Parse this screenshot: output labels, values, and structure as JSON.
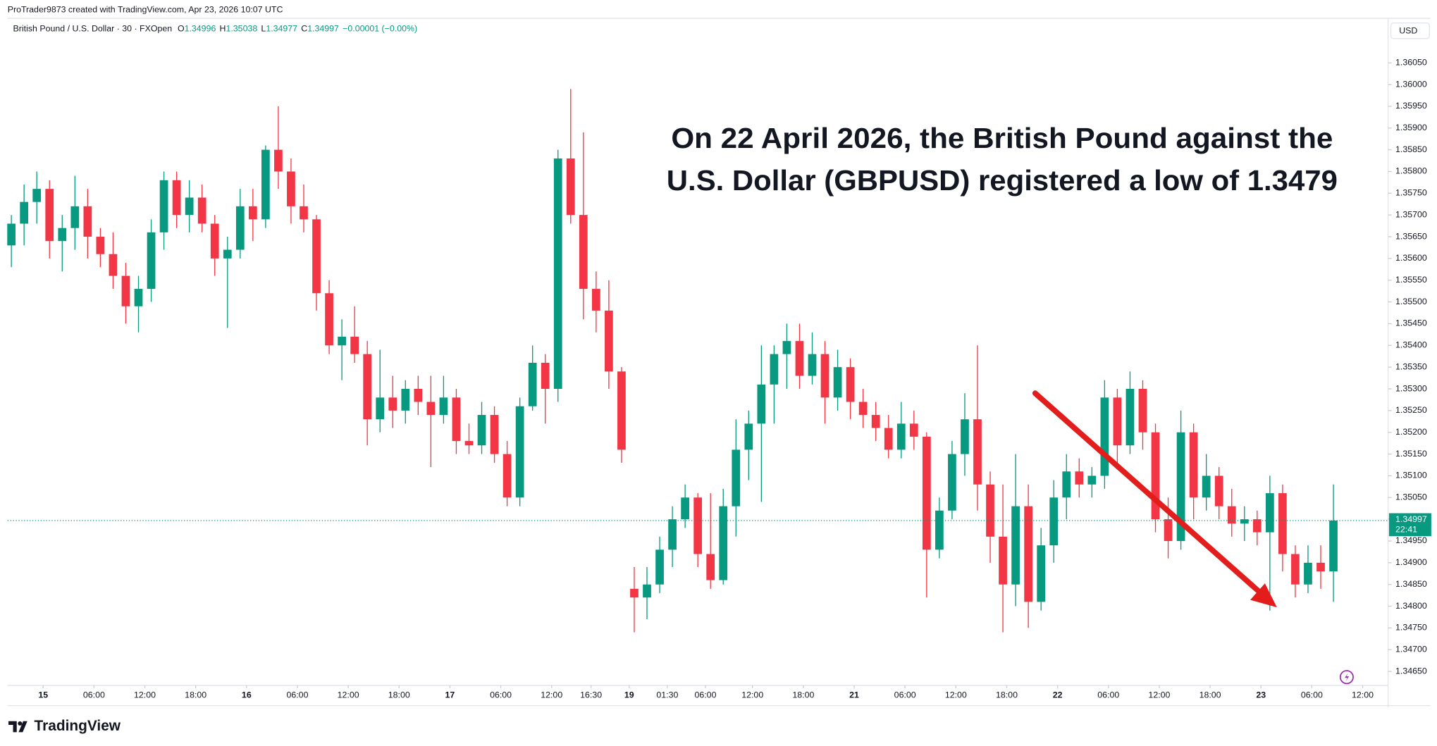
{
  "header": {
    "credit": "ProTrader9873 created with TradingView.com, Apr 23, 2026 10:07 UTC",
    "symbol": "British Pound / U.S. Dollar · 30 · FXOpen",
    "legend": [
      {
        "label": "O",
        "value": 1.34996
      },
      {
        "label": "H",
        "value": 1.35038
      },
      {
        "label": "L",
        "value": 1.34977
      },
      {
        "label": "C",
        "value": 1.34997
      }
    ],
    "change": "−0.00001 (−0.00%)",
    "currency": "USD"
  },
  "annotation": [
    "On 22 April 2026, the British Pound against the",
    "U.S. Dollar (GBPUSD) registered a low of 1.3479"
  ],
  "footer": {
    "logo": "TradingView"
  },
  "chart_data": {
    "type": "candlestick",
    "up_color": "#089981",
    "down_color": "#f23645",
    "grid": false,
    "last_price": 1.34997,
    "countdown": "22:41",
    "xlim": [
      -0.3,
      108.3
    ],
    "ylim": [
      1.3462,
      1.3611
    ],
    "xticks": [
      {
        "value": 2.5,
        "label": "15"
      },
      {
        "value": 6.5,
        "label": "06:00"
      },
      {
        "value": 10.5,
        "label": "12:00"
      },
      {
        "value": 14.5,
        "label": "18:00"
      },
      {
        "value": 18.5,
        "label": "16"
      },
      {
        "value": 22.5,
        "label": "06:00"
      },
      {
        "value": 26.5,
        "label": "12:00"
      },
      {
        "value": 30.5,
        "label": "18:00"
      },
      {
        "value": 34.5,
        "label": "17"
      },
      {
        "value": 38.5,
        "label": "06:00"
      },
      {
        "value": 42.5,
        "label": "12:00"
      },
      {
        "value": 45.6,
        "label": "16:30"
      },
      {
        "value": 48.6,
        "label": "19"
      },
      {
        "value": 51.6,
        "label": "01:30"
      },
      {
        "value": 54.6,
        "label": "06:00"
      },
      {
        "value": 58.3,
        "label": "12:00"
      },
      {
        "value": 62.3,
        "label": "18:00"
      },
      {
        "value": 66.3,
        "label": "21"
      },
      {
        "value": 70.3,
        "label": "06:00"
      },
      {
        "value": 74.3,
        "label": "12:00"
      },
      {
        "value": 78.3,
        "label": "18:00"
      },
      {
        "value": 82.3,
        "label": "22"
      },
      {
        "value": 86.3,
        "label": "06:00"
      },
      {
        "value": 90.3,
        "label": "12:00"
      },
      {
        "value": 94.3,
        "label": "18:00"
      },
      {
        "value": 98.3,
        "label": "23"
      },
      {
        "value": 102.3,
        "label": "06:00"
      },
      {
        "value": 106.3,
        "label": "12:00"
      }
    ],
    "yticks": [
      {
        "value": 1.3465,
        "label": "1.34650"
      },
      {
        "value": 1.347,
        "label": "1.34700"
      },
      {
        "value": 1.3475,
        "label": "1.34750"
      },
      {
        "value": 1.348,
        "label": "1.34800"
      },
      {
        "value": 1.3485,
        "label": "1.34850"
      },
      {
        "value": 1.349,
        "label": "1.34900"
      },
      {
        "value": 1.3495,
        "label": "1.34950"
      },
      {
        "value": 1.35,
        "label": "1.35000"
      },
      {
        "value": 1.3505,
        "label": "1.35050"
      },
      {
        "value": 1.351,
        "label": "1.35100"
      },
      {
        "value": 1.3515,
        "label": "1.35150"
      },
      {
        "value": 1.352,
        "label": "1.35200"
      },
      {
        "value": 1.3525,
        "label": "1.35250"
      },
      {
        "value": 1.353,
        "label": "1.35300"
      },
      {
        "value": 1.3535,
        "label": "1.35350"
      },
      {
        "value": 1.354,
        "label": "1.35400"
      },
      {
        "value": 1.3545,
        "label": "1.35450"
      },
      {
        "value": 1.355,
        "label": "1.35500"
      },
      {
        "value": 1.3555,
        "label": "1.35550"
      },
      {
        "value": 1.356,
        "label": "1.35600"
      },
      {
        "value": 1.3565,
        "label": "1.35650"
      },
      {
        "value": 1.357,
        "label": "1.35700"
      },
      {
        "value": 1.3575,
        "label": "1.35750"
      },
      {
        "value": 1.358,
        "label": "1.35800"
      },
      {
        "value": 1.3585,
        "label": "1.35850"
      },
      {
        "value": 1.359,
        "label": "1.35900"
      },
      {
        "value": 1.3595,
        "label": "1.35950"
      },
      {
        "value": 1.36,
        "label": "1.36000"
      },
      {
        "value": 1.3605,
        "label": "1.36050"
      }
    ],
    "open": [
      1.3563,
      1.3568,
      1.3573,
      1.3576,
      1.3564,
      1.3567,
      1.3572,
      1.3565,
      1.3561,
      1.3556,
      1.3549,
      1.3553,
      1.3566,
      1.3578,
      1.357,
      1.3574,
      1.3568,
      1.356,
      1.3562,
      1.3572,
      1.3569,
      1.3585,
      1.358,
      1.3572,
      1.3569,
      1.3552,
      1.354,
      1.3542,
      1.3538,
      1.3523,
      1.3528,
      1.3525,
      1.353,
      1.3527,
      1.3524,
      1.3528,
      1.3518,
      1.3517,
      1.3524,
      1.3515,
      1.3505,
      1.3526,
      1.3536,
      1.353,
      1.3583,
      1.357,
      1.3553,
      1.3548,
      1.3534,
      1.3484,
      1.3482,
      1.3485,
      1.3493,
      1.35,
      1.3505,
      1.3492,
      1.3486,
      1.3503,
      1.3516,
      1.3522,
      1.3531,
      1.3538,
      1.3541,
      1.3533,
      1.3538,
      1.3528,
      1.3535,
      1.3527,
      1.3524,
      1.3521,
      1.3516,
      1.3522,
      1.3519,
      1.3493,
      1.3502,
      1.3515,
      1.3523,
      1.3508,
      1.3496,
      1.3485,
      1.3503,
      1.3481,
      1.3494,
      1.3505,
      1.3511,
      1.3508,
      1.351,
      1.3528,
      1.3517,
      1.353,
      1.352,
      1.35,
      1.3495,
      1.352,
      1.3505,
      1.351,
      1.3503,
      1.3499,
      1.35,
      1.3497,
      1.3506,
      1.3492,
      1.3485,
      1.349,
      1.3488
    ],
    "high": [
      1.357,
      1.3577,
      1.358,
      1.3578,
      1.357,
      1.3579,
      1.3576,
      1.3567,
      1.3566,
      1.3559,
      1.3556,
      1.3569,
      1.358,
      1.358,
      1.3578,
      1.3577,
      1.357,
      1.3565,
      1.3576,
      1.3576,
      1.3586,
      1.3595,
      1.3583,
      1.3577,
      1.357,
      1.3555,
      1.3546,
      1.3549,
      1.3541,
      1.3539,
      1.3533,
      1.3532,
      1.3533,
      1.3533,
      1.3533,
      1.353,
      1.3522,
      1.3527,
      1.3526,
      1.3518,
      1.3528,
      1.354,
      1.3538,
      1.3585,
      1.3599,
      1.3589,
      1.3557,
      1.3555,
      1.3535,
      1.3489,
      1.3489,
      1.3496,
      1.3503,
      1.3508,
      1.3506,
      1.3506,
      1.3507,
      1.3523,
      1.3525,
      1.354,
      1.354,
      1.3545,
      1.3545,
      1.3543,
      1.3541,
      1.3539,
      1.3537,
      1.353,
      1.3527,
      1.3524,
      1.3527,
      1.3525,
      1.352,
      1.3505,
      1.3518,
      1.3529,
      1.354,
      1.3511,
      1.3508,
      1.3515,
      1.3508,
      1.3498,
      1.3509,
      1.3515,
      1.3514,
      1.3512,
      1.3532,
      1.353,
      1.3534,
      1.3532,
      1.3522,
      1.3505,
      1.3525,
      1.3522,
      1.3515,
      1.3512,
      1.3507,
      1.3503,
      1.3502,
      1.351,
      1.3508,
      1.3494,
      1.3494,
      1.3494,
      1.3508
    ],
    "low": [
      1.3558,
      1.3563,
      1.3568,
      1.356,
      1.3557,
      1.3562,
      1.356,
      1.3558,
      1.3553,
      1.3545,
      1.3543,
      1.355,
      1.3562,
      1.3567,
      1.3566,
      1.3566,
      1.3556,
      1.3544,
      1.356,
      1.3564,
      1.3567,
      1.3576,
      1.3568,
      1.3566,
      1.3548,
      1.3538,
      1.3532,
      1.3536,
      1.3517,
      1.352,
      1.3521,
      1.3522,
      1.3524,
      1.3512,
      1.3522,
      1.3515,
      1.3515,
      1.3515,
      1.3513,
      1.3503,
      1.3503,
      1.3525,
      1.3522,
      1.3527,
      1.3568,
      1.3546,
      1.3543,
      1.353,
      1.3513,
      1.3474,
      1.3477,
      1.3483,
      1.3489,
      1.3498,
      1.3489,
      1.3484,
      1.3485,
      1.3496,
      1.3509,
      1.3504,
      1.3522,
      1.353,
      1.353,
      1.3531,
      1.3522,
      1.3525,
      1.3523,
      1.3521,
      1.3518,
      1.3514,
      1.3514,
      1.3516,
      1.3482,
      1.3491,
      1.35,
      1.351,
      1.3502,
      1.349,
      1.3474,
      1.348,
      1.3475,
      1.3479,
      1.349,
      1.35,
      1.3505,
      1.3505,
      1.3507,
      1.3512,
      1.3515,
      1.3516,
      1.3497,
      1.3491,
      1.3493,
      1.35,
      1.3502,
      1.35,
      1.3496,
      1.3495,
      1.3494,
      1.3479,
      1.3488,
      1.3482,
      1.3483,
      1.3484,
      1.3481
    ],
    "close": [
      1.3568,
      1.3573,
      1.3576,
      1.3564,
      1.3567,
      1.3572,
      1.3565,
      1.3561,
      1.3556,
      1.3549,
      1.3553,
      1.3566,
      1.3578,
      1.357,
      1.3574,
      1.3568,
      1.356,
      1.3562,
      1.3572,
      1.3569,
      1.3585,
      1.358,
      1.3572,
      1.3569,
      1.3552,
      1.354,
      1.3542,
      1.3538,
      1.3523,
      1.3528,
      1.3525,
      1.353,
      1.3527,
      1.3524,
      1.3528,
      1.3518,
      1.3517,
      1.3524,
      1.3515,
      1.3505,
      1.3526,
      1.3536,
      1.353,
      1.3583,
      1.357,
      1.3553,
      1.3548,
      1.3534,
      1.3516,
      1.3482,
      1.3485,
      1.3493,
      1.35,
      1.3505,
      1.3492,
      1.3486,
      1.3503,
      1.3516,
      1.3522,
      1.3531,
      1.3538,
      1.3541,
      1.3533,
      1.3538,
      1.3528,
      1.3535,
      1.3527,
      1.3524,
      1.3521,
      1.3516,
      1.3522,
      1.3519,
      1.3493,
      1.3502,
      1.3515,
      1.3523,
      1.3508,
      1.3496,
      1.3485,
      1.3503,
      1.3481,
      1.3494,
      1.3505,
      1.3511,
      1.3508,
      1.351,
      1.3528,
      1.3517,
      1.353,
      1.352,
      1.35,
      1.3495,
      1.352,
      1.3505,
      1.351,
      1.3503,
      1.3499,
      1.35,
      1.3497,
      1.3506,
      1.3492,
      1.3485,
      1.349,
      1.3488,
      1.34997
    ]
  }
}
